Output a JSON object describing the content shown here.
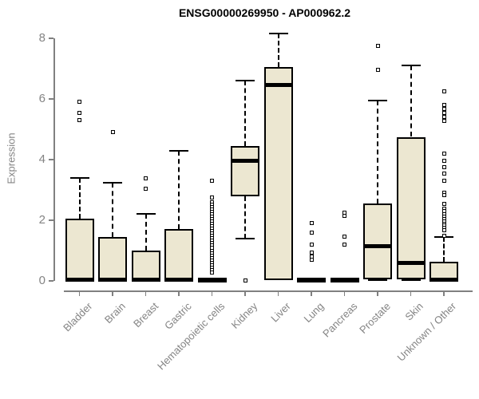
{
  "chart_data": {
    "type": "box",
    "title": "ENSG00000269950 - AP000962.2",
    "ylabel": "Expression",
    "xlabel": "",
    "ylim": [
      0,
      8
    ],
    "yticks": [
      0,
      2,
      4,
      6,
      8
    ],
    "grid": false,
    "legend": "none",
    "colors": {
      "box_fill": "#ece7d1",
      "box_border": "#000000",
      "median": "#000000",
      "whisker": "#000000",
      "axis": "#808080",
      "tick_label": "#848484",
      "title": "#000000",
      "background": "#ffffff"
    },
    "categories": [
      "Bladder",
      "Brain",
      "Breast",
      "Gastric",
      "Hematopoietic cells",
      "Kidney",
      "Liver",
      "Lung",
      "Pancreas",
      "Prostate",
      "Skin",
      "Unknown / Other"
    ],
    "series": [
      {
        "name": "Bladder",
        "min": 0,
        "q1": 0,
        "median": 0.05,
        "q3": 2.05,
        "max": 3.4,
        "outliers": [
          5.9,
          5.55,
          5.3
        ]
      },
      {
        "name": "Brain",
        "min": 0,
        "q1": 0,
        "median": 0.05,
        "q3": 1.45,
        "max": 3.25,
        "outliers": [
          4.9
        ]
      },
      {
        "name": "Breast",
        "min": 0,
        "q1": 0,
        "median": 0.05,
        "q3": 1.0,
        "max": 2.2,
        "outliers": [
          3.37,
          3.05
        ]
      },
      {
        "name": "Gastric",
        "min": 0,
        "q1": 0,
        "median": 0.05,
        "q3": 1.7,
        "max": 4.3,
        "outliers": []
      },
      {
        "name": "Hematopoietic cells",
        "min": 0,
        "q1": 0,
        "median": 0.03,
        "q3": 0.06,
        "max": 0.06,
        "outliers": [
          3.3,
          2.75,
          2.6,
          2.52,
          2.44,
          2.36,
          2.28,
          2.2,
          2.12,
          2.04,
          1.96,
          1.88,
          1.8,
          1.72,
          1.64,
          1.56,
          1.48,
          1.4,
          1.32,
          1.24,
          1.16,
          1.08,
          1.0,
          0.92,
          0.84,
          0.76,
          0.68,
          0.6,
          0.52,
          0.44,
          0.36,
          0.28
        ]
      },
      {
        "name": "Kidney",
        "min": 1.4,
        "q1": 2.78,
        "median": 3.95,
        "q3": 4.45,
        "max": 6.6,
        "outliers": [
          0.02
        ]
      },
      {
        "name": "Liver",
        "min": 0.03,
        "q1": 0.03,
        "median": 6.45,
        "q3": 7.05,
        "max": 8.15,
        "outliers": []
      },
      {
        "name": "Lung",
        "min": 0,
        "q1": 0,
        "median": 0.03,
        "q3": 0.06,
        "max": 0.06,
        "outliers": [
          1.92,
          1.6,
          1.2,
          0.93,
          0.8,
          0.7
        ]
      },
      {
        "name": "Pancreas",
        "min": 0,
        "q1": 0,
        "median": 0.03,
        "q3": 0.06,
        "max": 0.06,
        "outliers": [
          2.25,
          2.15,
          1.45,
          1.2
        ]
      },
      {
        "name": "Prostate",
        "min": 0.02,
        "q1": 0.05,
        "median": 1.15,
        "q3": 2.55,
        "max": 5.95,
        "outliers": [
          7.75,
          6.95
        ]
      },
      {
        "name": "Skin",
        "min": 0.02,
        "q1": 0.05,
        "median": 0.6,
        "q3": 4.75,
        "max": 7.1,
        "outliers": []
      },
      {
        "name": "Unknown / Other",
        "min": 0,
        "q1": 0,
        "median": 0.05,
        "q3": 0.63,
        "max": 1.45,
        "outliers": [
          6.25,
          5.8,
          5.67,
          5.54,
          5.41,
          5.28,
          4.2,
          3.95,
          3.75,
          3.55,
          3.3,
          2.9,
          2.83,
          2.55,
          2.37,
          2.29,
          2.21,
          2.13,
          2.05,
          1.97,
          1.89,
          1.82,
          1.75,
          1.68,
          1.48
        ]
      }
    ]
  }
}
